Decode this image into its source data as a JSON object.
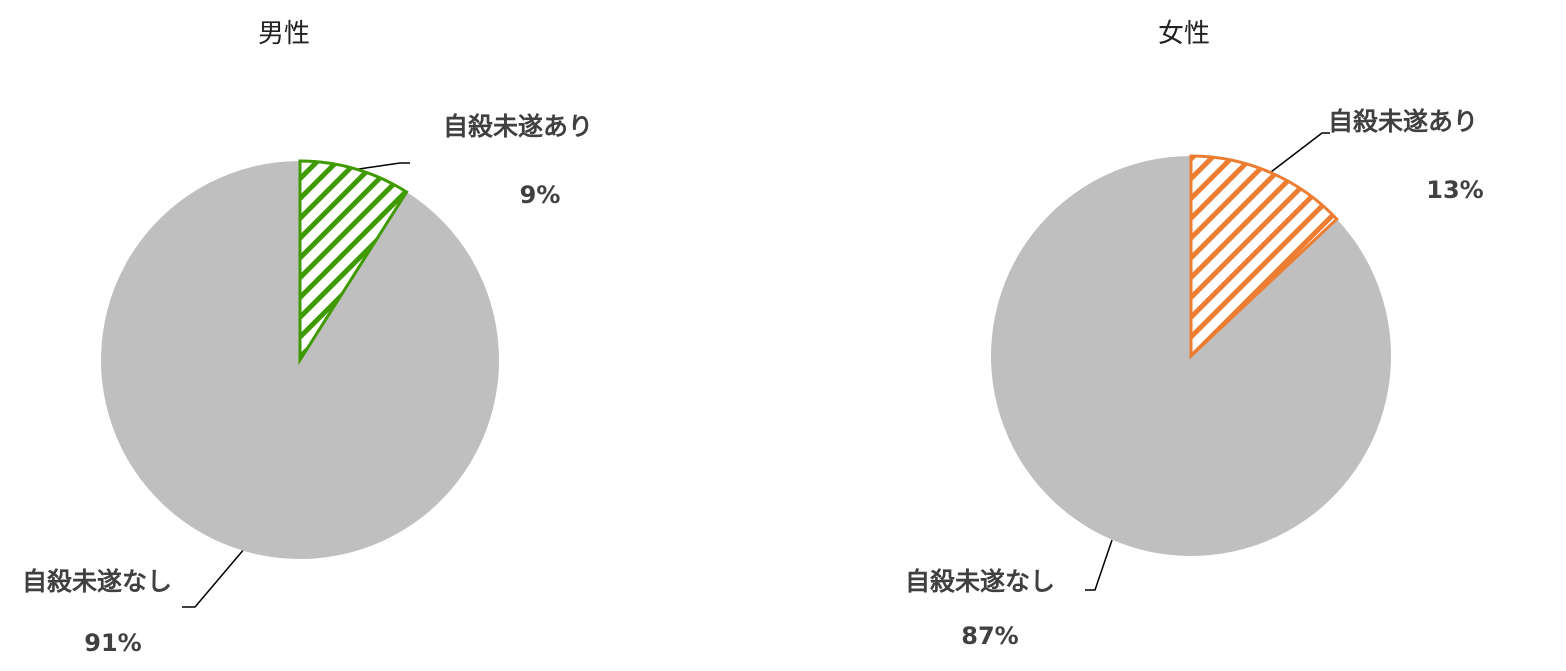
{
  "chart_data": [
    {
      "type": "pie",
      "title": "男性",
      "slices": [
        {
          "label": "自殺未遂あり",
          "value": 9,
          "value_label": "9%",
          "fill": "hatched",
          "color": "#3f9a00"
        },
        {
          "label": "自殺未遂なし",
          "value": 91,
          "value_label": "91%",
          "fill": "solid",
          "color": "#bfbfbf"
        }
      ]
    },
    {
      "type": "pie",
      "title": "女性",
      "slices": [
        {
          "label": "自殺未遂あり",
          "value": 13,
          "value_label": "13%",
          "fill": "hatched",
          "color": "#ed7d31"
        },
        {
          "label": "自殺未遂なし",
          "value": 87,
          "value_label": "87%",
          "fill": "solid",
          "color": "#bfbfbf"
        }
      ]
    }
  ]
}
